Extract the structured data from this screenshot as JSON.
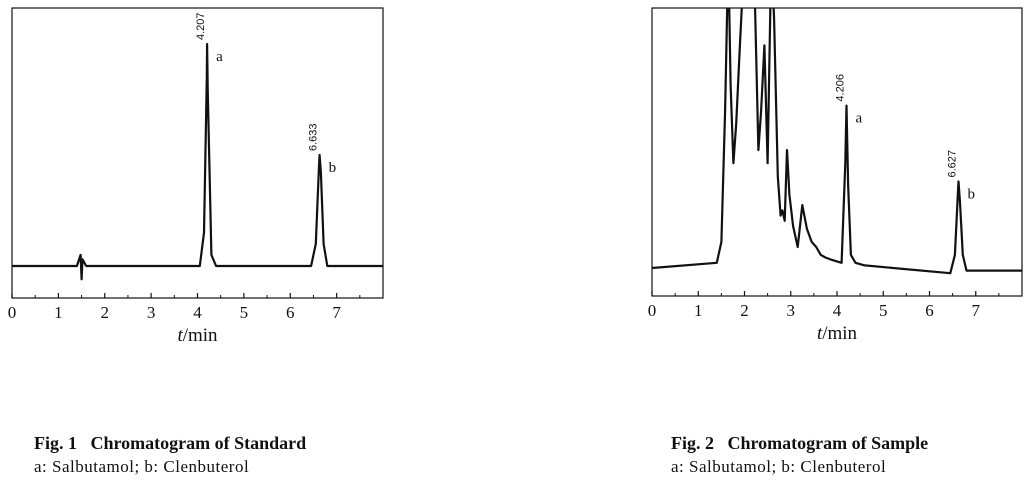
{
  "chart_data": [
    {
      "type": "line",
      "xlabel_italic": "t",
      "xlabel_unit": "/min",
      "xlim": [
        0,
        8
      ],
      "xticks": [
        0,
        1,
        2,
        3,
        4,
        5,
        6,
        7
      ],
      "grid": false,
      "series": [
        {
          "x": [
            0,
            1.4,
            1.48,
            1.5,
            1.52,
            1.6,
            4.05,
            4.14,
            4.2,
            4.207,
            4.22,
            4.3,
            4.4,
            6.45,
            6.55,
            6.62,
            6.633,
            6.66,
            6.72,
            6.8,
            8
          ],
          "y": [
            0,
            0,
            0.05,
            -0.06,
            0.03,
            0,
            0,
            0.15,
            0.85,
            1.0,
            0.8,
            0.05,
            0,
            0,
            0.1,
            0.45,
            0.5,
            0.42,
            0.1,
            0,
            0
          ]
        }
      ],
      "annotations": [
        {
          "x": 4.207,
          "rt": "4.207",
          "label": "a"
        },
        {
          "x": 6.633,
          "rt": "6.633",
          "label": "b"
        }
      ]
    },
    {
      "type": "line",
      "xlabel_italic": "t",
      "xlabel_unit": "/min",
      "xlim": [
        0,
        8
      ],
      "xticks": [
        0,
        1,
        2,
        3,
        4,
        5,
        6,
        7
      ],
      "grid": false,
      "series": [
        {
          "x": [
            0,
            1.4,
            1.5,
            1.58,
            1.65,
            1.7,
            1.76,
            1.82,
            1.9,
            2.0,
            2.05,
            2.12,
            2.2,
            2.3,
            2.36,
            2.43,
            2.5,
            2.58,
            2.64,
            2.72,
            2.78,
            2.82,
            2.87,
            2.92,
            2.97,
            3.05,
            3.15,
            3.25,
            3.35,
            3.45,
            3.55,
            3.65,
            3.75,
            3.9,
            4.1,
            4.18,
            4.206,
            4.24,
            4.3,
            4.4,
            4.6,
            6.45,
            6.55,
            6.62,
            6.627,
            6.66,
            6.72,
            6.8,
            8
          ],
          "y": [
            0,
            0.02,
            0.1,
            0.6,
            1.2,
            0.7,
            0.4,
            0.55,
            0.85,
            1.2,
            1.3,
            1.25,
            1.2,
            0.45,
            0.6,
            0.85,
            0.4,
            1.2,
            0.95,
            0.35,
            0.2,
            0.22,
            0.18,
            0.45,
            0.28,
            0.16,
            0.08,
            0.24,
            0.15,
            0.1,
            0.08,
            0.05,
            0.04,
            0.03,
            0.02,
            0.4,
            0.62,
            0.32,
            0.05,
            0.02,
            0.01,
            -0.02,
            0.05,
            0.31,
            0.33,
            0.25,
            0.05,
            -0.01,
            -0.01
          ]
        }
      ],
      "annotations": [
        {
          "x": 4.206,
          "rt": "4.206",
          "label": "a"
        },
        {
          "x": 6.627,
          "rt": "6.627",
          "label": "b"
        }
      ]
    }
  ],
  "captions": [
    {
      "title": "Fig. 1   Chromatogram of Standard",
      "legend": "a: Salbutamol; b: Clenbuterol"
    },
    {
      "title": "Fig. 2   Chromatogram of Sample",
      "legend": "a: Salbutamol; b: Clenbuterol"
    }
  ]
}
